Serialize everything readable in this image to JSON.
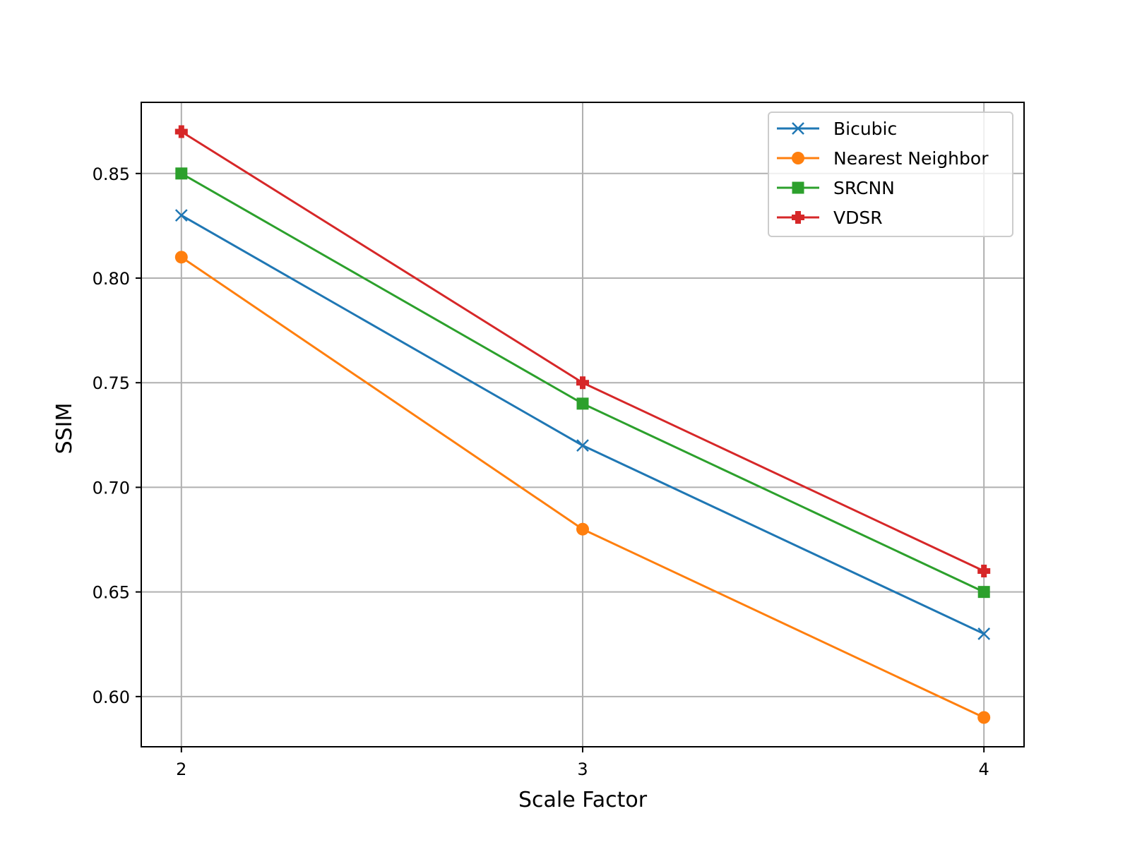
{
  "chart_data": {
    "type": "line",
    "title": "",
    "xlabel": "Scale Factor",
    "ylabel": "SSIM",
    "x": [
      2,
      3,
      4
    ],
    "xticks": [
      "2",
      "3",
      "4"
    ],
    "yticks": [
      "0.60",
      "0.65",
      "0.70",
      "0.75",
      "0.80",
      "0.85"
    ],
    "xlim": [
      1.9,
      4.1
    ],
    "ylim": [
      0.576,
      0.884
    ],
    "grid": true,
    "legend_position": "top-right",
    "series": [
      {
        "name": "Bicubic",
        "values": [
          0.83,
          0.72,
          0.63
        ],
        "color": "#1f77b4",
        "marker": "x"
      },
      {
        "name": "Nearest Neighbor",
        "values": [
          0.81,
          0.68,
          0.59
        ],
        "color": "#ff7f0e",
        "marker": "circle"
      },
      {
        "name": "SRCNN",
        "values": [
          0.85,
          0.74,
          0.65
        ],
        "color": "#2ca02c",
        "marker": "square"
      },
      {
        "name": "VDSR",
        "values": [
          0.87,
          0.75,
          0.66
        ],
        "color": "#d62728",
        "marker": "plus-filled"
      }
    ]
  }
}
